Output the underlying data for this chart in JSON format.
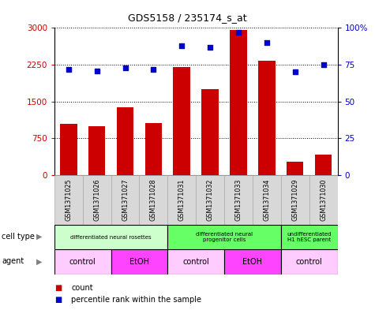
{
  "title": "GDS5158 / 235174_s_at",
  "samples": [
    "GSM1371025",
    "GSM1371026",
    "GSM1371027",
    "GSM1371028",
    "GSM1371031",
    "GSM1371032",
    "GSM1371033",
    "GSM1371034",
    "GSM1371029",
    "GSM1371030"
  ],
  "counts": [
    1050,
    1000,
    1380,
    1060,
    2200,
    1750,
    2960,
    2330,
    280,
    420
  ],
  "percentiles": [
    72,
    71,
    73,
    72,
    88,
    87,
    97,
    90,
    70,
    75
  ],
  "bar_color": "#cc0000",
  "dot_color": "#0000cc",
  "ylim_left": [
    0,
    3000
  ],
  "ylim_right": [
    0,
    100
  ],
  "yticks_left": [
    0,
    750,
    1500,
    2250,
    3000
  ],
  "ytick_labels_left": [
    "0",
    "750",
    "1500",
    "2250",
    "3000"
  ],
  "yticks_right": [
    0,
    25,
    50,
    75,
    100
  ],
  "ytick_labels_right": [
    "0",
    "25",
    "50",
    "75",
    "100%"
  ],
  "cell_type_groups": [
    {
      "label": "differentiated neural rosettes",
      "start": 0,
      "end": 4,
      "color": "#ccffcc"
    },
    {
      "label": "differentiated neural\nprogenitor cells",
      "start": 4,
      "end": 8,
      "color": "#66ff66"
    },
    {
      "label": "undifferentiated\nH1 hESC parent",
      "start": 8,
      "end": 10,
      "color": "#66ff66"
    }
  ],
  "agent_groups": [
    {
      "label": "control",
      "start": 0,
      "end": 2,
      "color": "#ffccff"
    },
    {
      "label": "EtOH",
      "start": 2,
      "end": 4,
      "color": "#ff44ff"
    },
    {
      "label": "control",
      "start": 4,
      "end": 6,
      "color": "#ffccff"
    },
    {
      "label": "EtOH",
      "start": 6,
      "end": 8,
      "color": "#ff44ff"
    },
    {
      "label": "control",
      "start": 8,
      "end": 10,
      "color": "#ffccff"
    }
  ],
  "cell_type_label": "cell type",
  "agent_label": "agent",
  "legend_count": "count",
  "legend_percentile": "percentile rank within the sample",
  "bg_color": "#ffffff"
}
